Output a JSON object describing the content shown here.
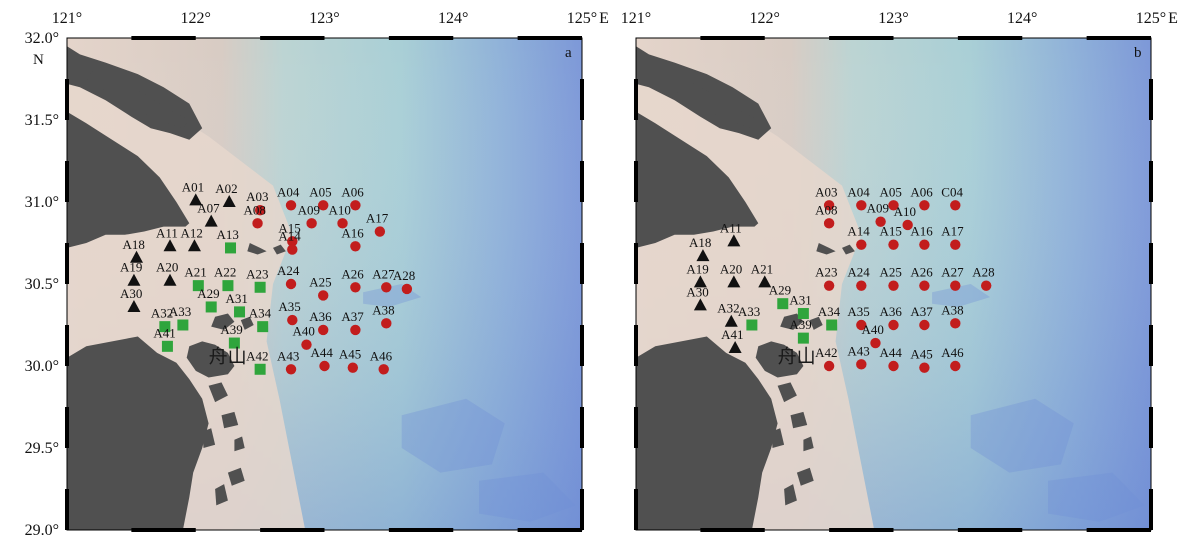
{
  "colors": {
    "sea_shallow": "#e6d7cd",
    "sea_mid": "#b7d5d6",
    "sea_deep": "#6f8fd6",
    "land": "#505050",
    "triangle": "#111111",
    "square": "#2fa53c",
    "circle": "#c21d1d",
    "frame_tick": "#000000"
  },
  "axes": {
    "x_ticks": [
      "121°",
      "122°",
      "123°",
      "124°",
      "125°"
    ],
    "x_unit": "E",
    "y_ticks": [
      "32.0°",
      "31.5°",
      "31.0°",
      "30.5°",
      "30.0°",
      "29.5°",
      "29.0°"
    ],
    "y_unit": "N",
    "lon_range": [
      121,
      125
    ],
    "lat_range": [
      29,
      32
    ]
  },
  "panels": [
    {
      "id": "a",
      "label": "a",
      "place_label": "舟山",
      "stations": [
        {
          "name": "A01",
          "lon": 122.0,
          "lat": 31.01,
          "type": "triangle"
        },
        {
          "name": "A02",
          "lon": 122.26,
          "lat": 31.0,
          "type": "triangle"
        },
        {
          "name": "A07",
          "lon": 122.12,
          "lat": 30.88,
          "type": "triangle"
        },
        {
          "name": "A03",
          "lon": 122.5,
          "lat": 30.95,
          "type": "circle"
        },
        {
          "name": "A04",
          "lon": 122.74,
          "lat": 30.98,
          "type": "circle"
        },
        {
          "name": "A05",
          "lon": 122.99,
          "lat": 30.98,
          "type": "circle"
        },
        {
          "name": "A06",
          "lon": 123.24,
          "lat": 30.98,
          "type": "circle"
        },
        {
          "name": "A08",
          "lon": 122.48,
          "lat": 30.87,
          "type": "circle"
        },
        {
          "name": "A09",
          "lon": 122.9,
          "lat": 30.87,
          "type": "circle"
        },
        {
          "name": "A10",
          "lon": 123.14,
          "lat": 30.87,
          "type": "circle"
        },
        {
          "name": "A17",
          "lon": 123.43,
          "lat": 30.82,
          "type": "circle"
        },
        {
          "name": "A11",
          "lon": 121.8,
          "lat": 30.73,
          "type": "triangle"
        },
        {
          "name": "A12",
          "lon": 121.99,
          "lat": 30.73,
          "type": "triangle"
        },
        {
          "name": "A13",
          "lon": 122.27,
          "lat": 30.72,
          "type": "square"
        },
        {
          "name": "A15",
          "lon": 122.75,
          "lat": 30.76,
          "type": "circle"
        },
        {
          "name": "A14",
          "lon": 122.75,
          "lat": 30.71,
          "type": "circle"
        },
        {
          "name": "A16",
          "lon": 123.24,
          "lat": 30.73,
          "type": "circle"
        },
        {
          "name": "A18",
          "lon": 121.54,
          "lat": 30.66,
          "type": "triangle"
        },
        {
          "name": "A20",
          "lon": 121.8,
          "lat": 30.52,
          "type": "triangle"
        },
        {
          "name": "A19",
          "lon": 121.52,
          "lat": 30.52,
          "type": "triangle"
        },
        {
          "name": "A21",
          "lon": 122.02,
          "lat": 30.49,
          "type": "square"
        },
        {
          "name": "A22",
          "lon": 122.25,
          "lat": 30.49,
          "type": "square"
        },
        {
          "name": "A23",
          "lon": 122.5,
          "lat": 30.48,
          "type": "square"
        },
        {
          "name": "A24",
          "lon": 122.74,
          "lat": 30.5,
          "type": "circle"
        },
        {
          "name": "A25",
          "lon": 122.99,
          "lat": 30.43,
          "type": "circle"
        },
        {
          "name": "A26",
          "lon": 123.24,
          "lat": 30.48,
          "type": "circle"
        },
        {
          "name": "A27",
          "lon": 123.48,
          "lat": 30.48,
          "type": "circle"
        },
        {
          "name": "A28",
          "lon": 123.64,
          "lat": 30.47,
          "type": "circle"
        },
        {
          "name": "A30",
          "lon": 121.52,
          "lat": 30.36,
          "type": "triangle"
        },
        {
          "name": "A29",
          "lon": 122.12,
          "lat": 30.36,
          "type": "square"
        },
        {
          "name": "A31",
          "lon": 122.34,
          "lat": 30.33,
          "type": "square"
        },
        {
          "name": "A35",
          "lon": 122.75,
          "lat": 30.28,
          "type": "circle"
        },
        {
          "name": "A38",
          "lon": 123.48,
          "lat": 30.26,
          "type": "circle"
        },
        {
          "name": "A32",
          "lon": 121.76,
          "lat": 30.24,
          "type": "square"
        },
        {
          "name": "A33",
          "lon": 121.9,
          "lat": 30.25,
          "type": "square"
        },
        {
          "name": "A34",
          "lon": 122.52,
          "lat": 30.24,
          "type": "square"
        },
        {
          "name": "A36",
          "lon": 122.99,
          "lat": 30.22,
          "type": "circle"
        },
        {
          "name": "A37",
          "lon": 123.24,
          "lat": 30.22,
          "type": "circle"
        },
        {
          "name": "A39",
          "lon": 122.3,
          "lat": 30.14,
          "type": "square"
        },
        {
          "name": "A40",
          "lon": 122.86,
          "lat": 30.13,
          "type": "circle"
        },
        {
          "name": "A41",
          "lon": 121.78,
          "lat": 30.12,
          "type": "square"
        },
        {
          "name": "A42",
          "lon": 122.5,
          "lat": 29.98,
          "type": "square"
        },
        {
          "name": "A43",
          "lon": 122.74,
          "lat": 29.98,
          "type": "circle"
        },
        {
          "name": "A44",
          "lon": 123.0,
          "lat": 30.0,
          "type": "circle"
        },
        {
          "name": "A45",
          "lon": 123.22,
          "lat": 29.99,
          "type": "circle"
        },
        {
          "name": "A46",
          "lon": 123.46,
          "lat": 29.98,
          "type": "circle"
        }
      ]
    },
    {
      "id": "b",
      "label": "b",
      "place_label": "舟山",
      "stations": [
        {
          "name": "A03",
          "lon": 122.5,
          "lat": 30.98,
          "type": "circle"
        },
        {
          "name": "A04",
          "lon": 122.75,
          "lat": 30.98,
          "type": "circle"
        },
        {
          "name": "A05",
          "lon": 123.0,
          "lat": 30.98,
          "type": "circle"
        },
        {
          "name": "A06",
          "lon": 123.24,
          "lat": 30.98,
          "type": "circle"
        },
        {
          "name": "C04",
          "lon": 123.48,
          "lat": 30.98,
          "type": "circle"
        },
        {
          "name": "A08",
          "lon": 122.5,
          "lat": 30.87,
          "type": "circle"
        },
        {
          "name": "A09",
          "lon": 122.9,
          "lat": 30.88,
          "type": "circle"
        },
        {
          "name": "A10",
          "lon": 123.11,
          "lat": 30.86,
          "type": "circle"
        },
        {
          "name": "A11",
          "lon": 121.76,
          "lat": 30.76,
          "type": "triangle"
        },
        {
          "name": "A14",
          "lon": 122.75,
          "lat": 30.74,
          "type": "circle"
        },
        {
          "name": "A15",
          "lon": 123.0,
          "lat": 30.74,
          "type": "circle"
        },
        {
          "name": "A16",
          "lon": 123.24,
          "lat": 30.74,
          "type": "circle"
        },
        {
          "name": "A17",
          "lon": 123.48,
          "lat": 30.74,
          "type": "circle"
        },
        {
          "name": "A18",
          "lon": 121.52,
          "lat": 30.67,
          "type": "triangle"
        },
        {
          "name": "A19",
          "lon": 121.5,
          "lat": 30.51,
          "type": "triangle"
        },
        {
          "name": "A20",
          "lon": 121.76,
          "lat": 30.51,
          "type": "triangle"
        },
        {
          "name": "A21",
          "lon": 122.0,
          "lat": 30.51,
          "type": "triangle"
        },
        {
          "name": "A23",
          "lon": 122.5,
          "lat": 30.49,
          "type": "circle"
        },
        {
          "name": "A24",
          "lon": 122.75,
          "lat": 30.49,
          "type": "circle"
        },
        {
          "name": "A25",
          "lon": 123.0,
          "lat": 30.49,
          "type": "circle"
        },
        {
          "name": "A26",
          "lon": 123.24,
          "lat": 30.49,
          "type": "circle"
        },
        {
          "name": "A27",
          "lon": 123.48,
          "lat": 30.49,
          "type": "circle"
        },
        {
          "name": "A28",
          "lon": 123.72,
          "lat": 30.49,
          "type": "circle"
        },
        {
          "name": "A30",
          "lon": 121.5,
          "lat": 30.37,
          "type": "triangle"
        },
        {
          "name": "A29",
          "lon": 122.14,
          "lat": 30.38,
          "type": "square"
        },
        {
          "name": "A31",
          "lon": 122.3,
          "lat": 30.32,
          "type": "square"
        },
        {
          "name": "A32",
          "lon": 121.74,
          "lat": 30.27,
          "type": "triangle"
        },
        {
          "name": "A33",
          "lon": 121.9,
          "lat": 30.25,
          "type": "square"
        },
        {
          "name": "A34",
          "lon": 122.52,
          "lat": 30.25,
          "type": "square"
        },
        {
          "name": "A35",
          "lon": 122.75,
          "lat": 30.25,
          "type": "circle"
        },
        {
          "name": "A36",
          "lon": 123.0,
          "lat": 30.25,
          "type": "circle"
        },
        {
          "name": "A37",
          "lon": 123.24,
          "lat": 30.25,
          "type": "circle"
        },
        {
          "name": "A38",
          "lon": 123.48,
          "lat": 30.26,
          "type": "circle"
        },
        {
          "name": "A39",
          "lon": 122.3,
          "lat": 30.17,
          "type": "square"
        },
        {
          "name": "A40",
          "lon": 122.86,
          "lat": 30.14,
          "type": "circle"
        },
        {
          "name": "A41",
          "lon": 121.77,
          "lat": 30.11,
          "type": "triangle"
        },
        {
          "name": "A42",
          "lon": 122.5,
          "lat": 30.0,
          "type": "circle"
        },
        {
          "name": "A43",
          "lon": 122.75,
          "lat": 30.01,
          "type": "circle"
        },
        {
          "name": "A44",
          "lon": 123.0,
          "lat": 30.0,
          "type": "circle"
        },
        {
          "name": "A45",
          "lon": 123.24,
          "lat": 29.99,
          "type": "circle"
        },
        {
          "name": "A46",
          "lon": 123.48,
          "lat": 30.0,
          "type": "circle"
        }
      ]
    }
  ]
}
